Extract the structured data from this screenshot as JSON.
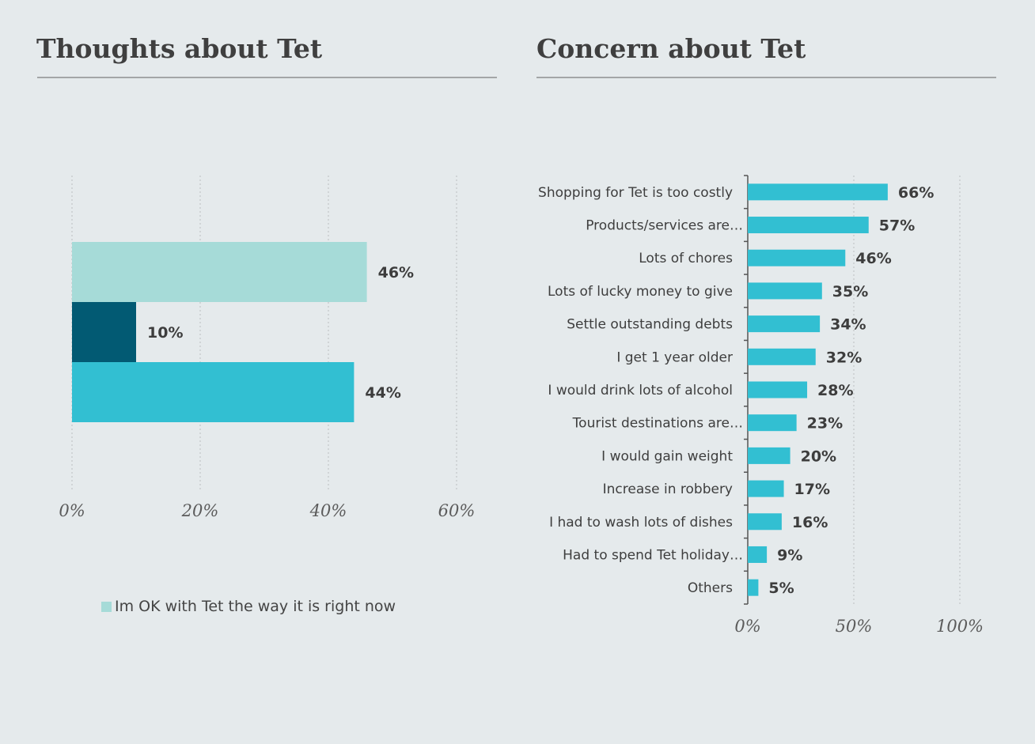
{
  "left_panel": {
    "title": "Thoughts about Tet",
    "legend": {
      "label": "Im OK with Tet the way it is right now",
      "color": "#a6dbd8"
    }
  },
  "right_panel": {
    "title": "Concern about Tet"
  },
  "chart_data": [
    {
      "type": "bar",
      "orientation": "horizontal",
      "title": "Thoughts about Tet",
      "categories": [
        "",
        "",
        ""
      ],
      "values": [
        46,
        10,
        44
      ],
      "value_labels": [
        "46%",
        "10%",
        "44%"
      ],
      "colors": [
        "#a6dbd8",
        "#025a73",
        "#32bfd2"
      ],
      "legend": [
        "Im OK with Tet the way it is right now"
      ],
      "legend_position": "bottom",
      "xlim": [
        0,
        60
      ],
      "xticks": [
        0,
        20,
        40,
        60
      ],
      "xtick_labels": [
        "0%",
        "20%",
        "40%",
        "60%"
      ],
      "grid": "vertical dotted"
    },
    {
      "type": "bar",
      "orientation": "horizontal",
      "title": "Concern about Tet",
      "categories": [
        "Shopping for Tet is too costly",
        "Products/services are…",
        "Lots of chores",
        "Lots of lucky money to give",
        "Settle outstanding debts",
        "I get 1 year older",
        "I would drink lots of alcohol",
        "Tourist destinations are…",
        "I would gain weight",
        "Increase in robbery",
        "I had to wash lots of dishes",
        "Had to spend Tet holiday…",
        "Others"
      ],
      "values": [
        66,
        57,
        46,
        35,
        34,
        32,
        28,
        23,
        20,
        17,
        16,
        9,
        5
      ],
      "value_labels": [
        "66%",
        "57%",
        "46%",
        "35%",
        "34%",
        "32%",
        "28%",
        "23%",
        "20%",
        "17%",
        "16%",
        "9%",
        "5%"
      ],
      "color": "#32bfd2",
      "xlim": [
        0,
        100
      ],
      "xticks": [
        0,
        50,
        100
      ],
      "xtick_labels": [
        "0%",
        "50%",
        "100%"
      ],
      "grid": "vertical dotted"
    }
  ]
}
